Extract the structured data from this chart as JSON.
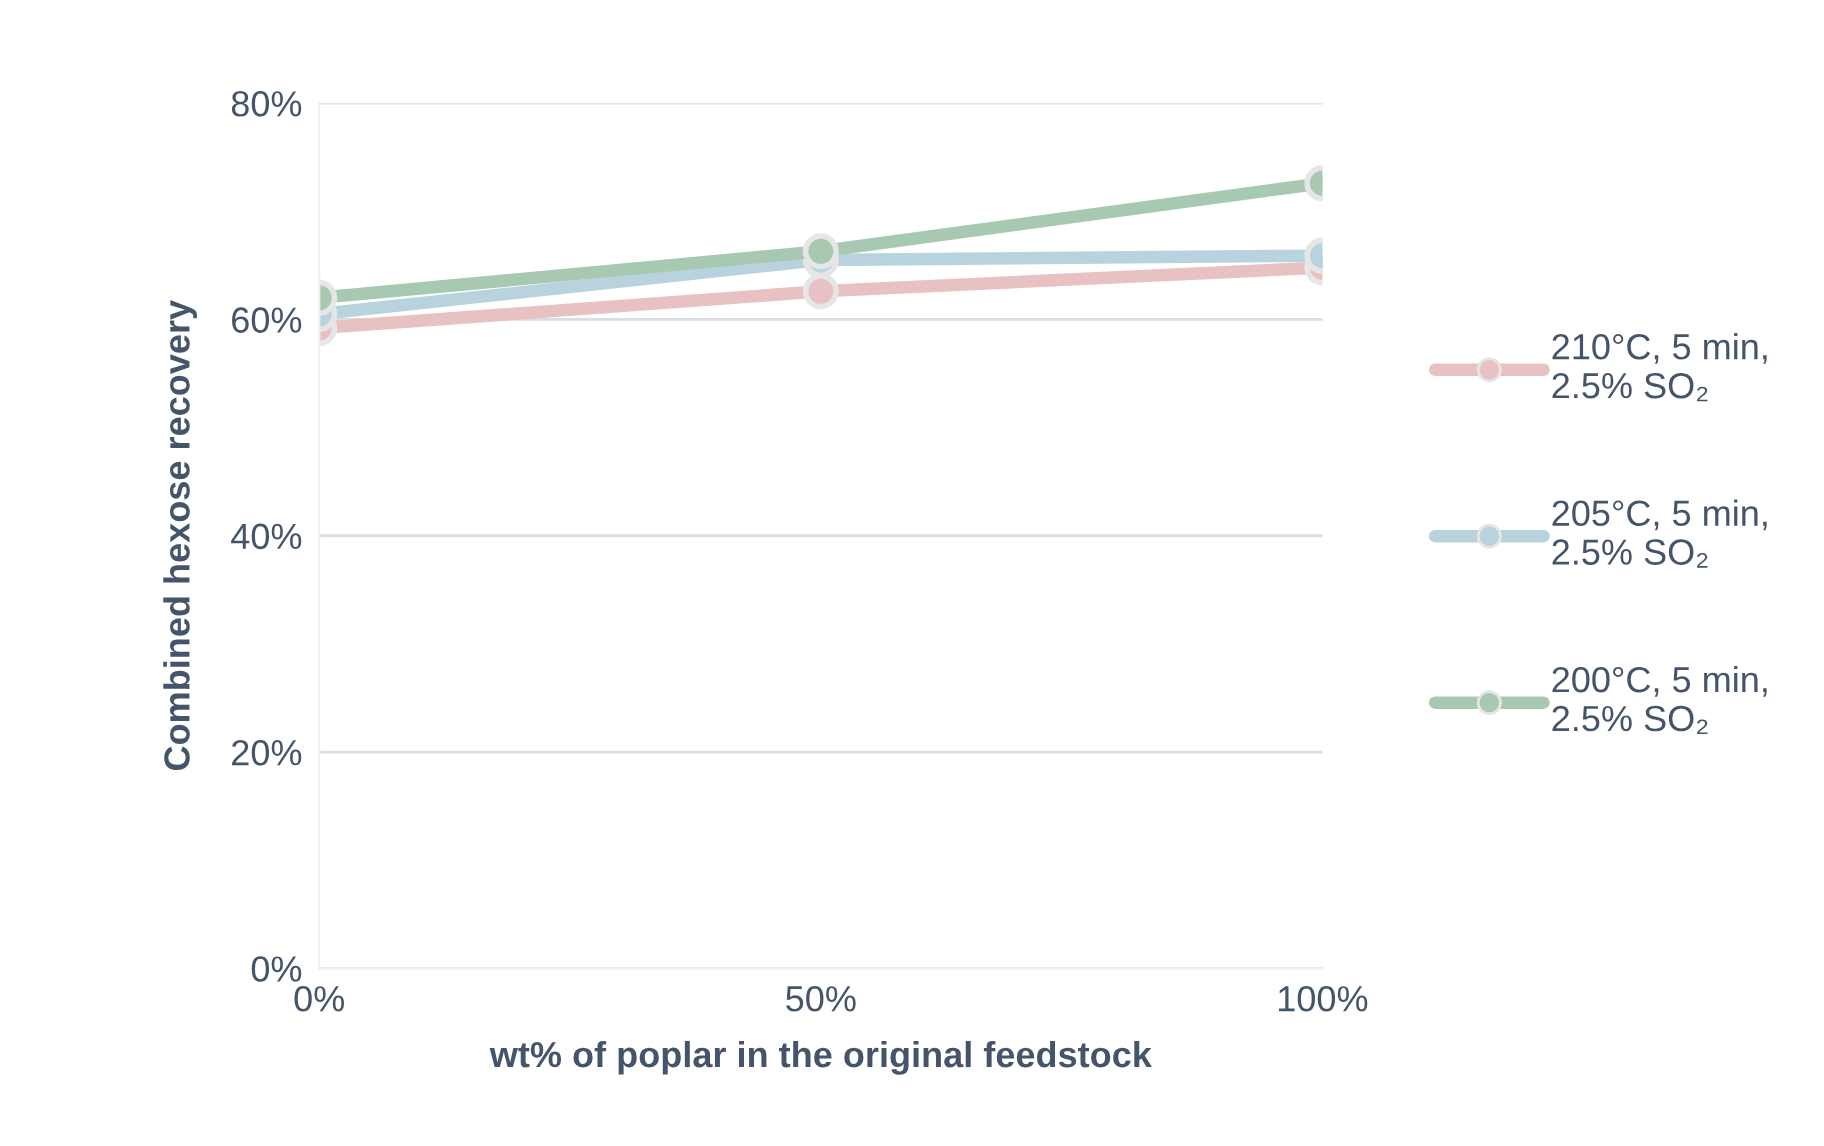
{
  "chart_data": {
    "type": "line",
    "xlabel": "wt% of poplar in the original feedstock",
    "ylabel": "Combined hexose recovery",
    "x": [
      0,
      50,
      100
    ],
    "xlim": [
      0,
      100
    ],
    "xticks": [
      {
        "value": 0,
        "label": "0%"
      },
      {
        "value": 50,
        "label": "50%"
      },
      {
        "value": 100,
        "label": "100%"
      }
    ],
    "ylim": [
      0,
      80
    ],
    "yticks": [
      {
        "value": 0,
        "label": "0%"
      },
      {
        "value": 20,
        "label": "20%"
      },
      {
        "value": 40,
        "label": "40%"
      },
      {
        "value": 60,
        "label": "60%"
      },
      {
        "value": 80,
        "label": "80%"
      }
    ],
    "series": [
      {
        "name": "210°C, 5 min,\n2.5% SO₂",
        "color": "#e8c1c3",
        "values": [
          59.2,
          62.6,
          64.8
        ]
      },
      {
        "name": "205°C, 5 min,\n2.5% SO₂",
        "color": "#b8d3de",
        "values": [
          60.5,
          65.5,
          65.9
        ]
      },
      {
        "name": "200°C, 5 min,\n2.5% SO₂",
        "color": "#a7c9b1",
        "values": [
          62.0,
          66.3,
          72.6
        ]
      }
    ],
    "grid": "y",
    "legend": "right",
    "marker": "circle",
    "line_style": "solid"
  }
}
